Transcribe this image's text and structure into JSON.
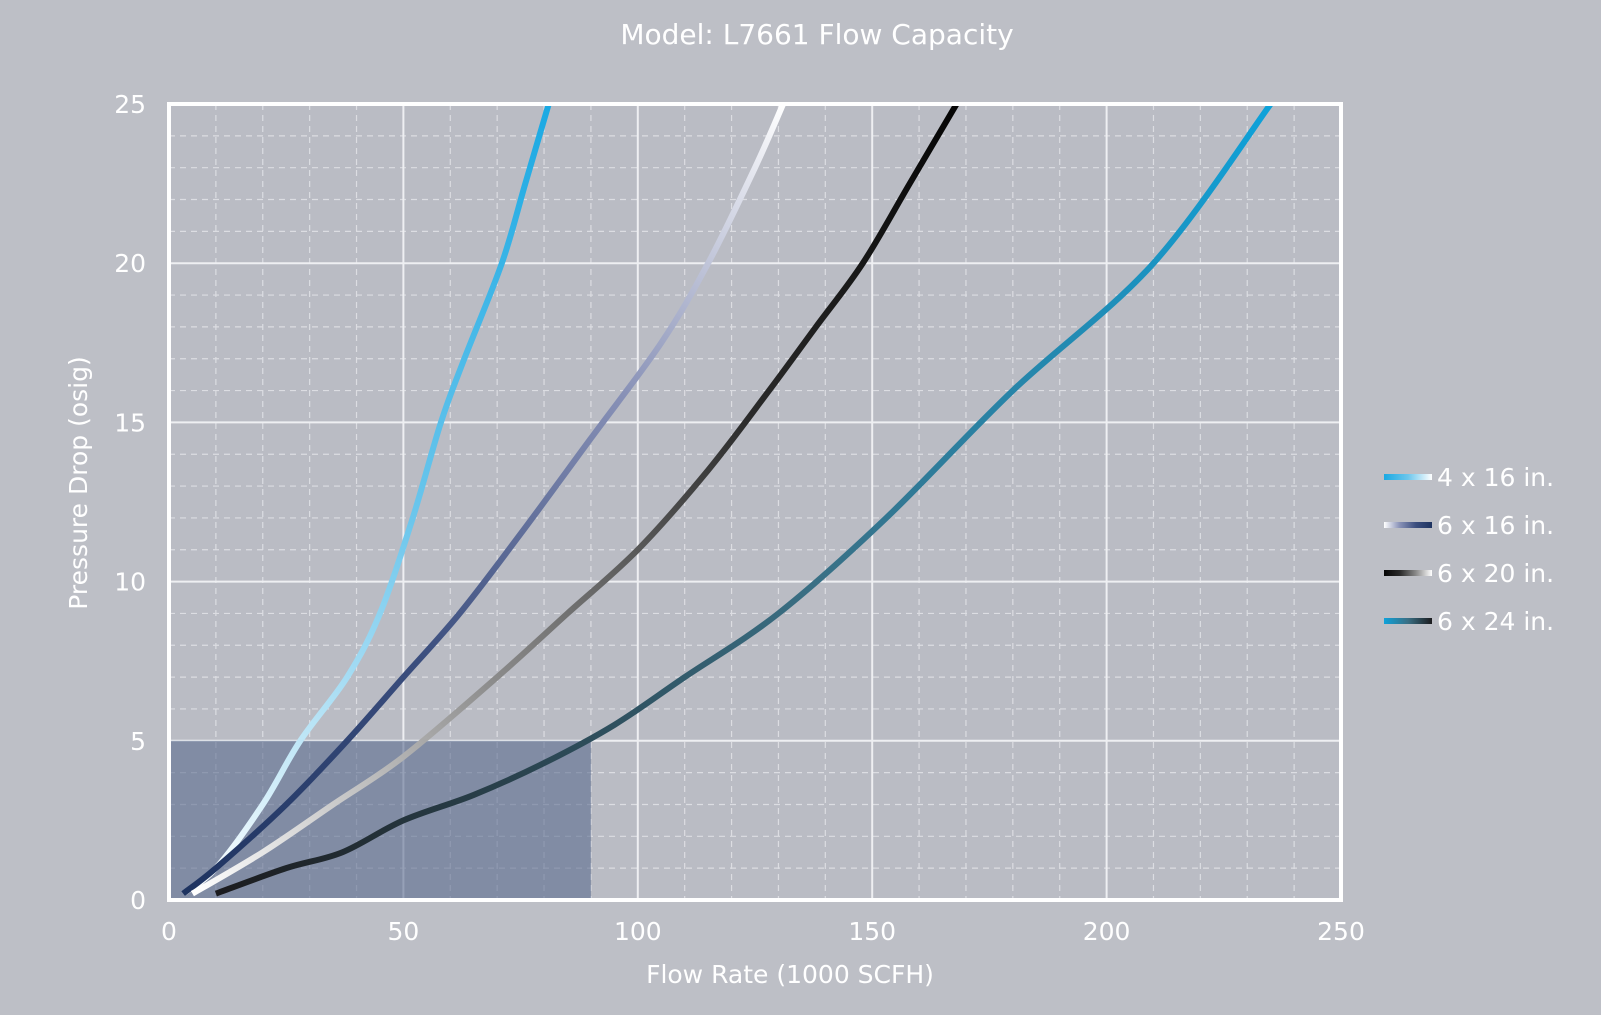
{
  "chart_data": {
    "type": "line",
    "title": "Model: L7661 Flow Capacity",
    "xlabel": "Flow Rate (1000 SCFH)",
    "ylabel": "Pressure Drop (osig)",
    "xlim": [
      0,
      250
    ],
    "ylim": [
      0,
      25
    ],
    "x_ticks": [
      "0",
      "50",
      "100",
      "150",
      "200",
      "250"
    ],
    "y_ticks": [
      "0",
      "5",
      "10",
      "15",
      "20",
      "25"
    ],
    "grid": true,
    "legend_position": "right",
    "highlight_region": {
      "x": [
        0,
        90
      ],
      "y": [
        0,
        5
      ],
      "color": "#5c6d8f"
    },
    "series": [
      {
        "name": "4 x 16 in.",
        "colors": [
          "#ffffff",
          "#6cc6ec",
          "#1aa9e3"
        ],
        "x": [
          3,
          10,
          20,
          28,
          38,
          45,
          52,
          58,
          63,
          71,
          76,
          81
        ],
        "y": [
          0.2,
          1,
          3,
          5,
          7,
          9,
          12,
          15,
          17,
          20,
          22.5,
          25
        ]
      },
      {
        "name": "6 x 16 in.",
        "colors": [
          "#1e3360",
          "#3b4e7e",
          "#8790b6",
          "#ffffff"
        ],
        "x": [
          3,
          10,
          25,
          38,
          50,
          62,
          75,
          90,
          105,
          115,
          125,
          131
        ],
        "y": [
          0.2,
          1,
          3,
          5,
          7,
          9,
          11.5,
          14.5,
          17.5,
          20,
          23,
          25
        ]
      },
      {
        "name": "6 x 20 in.",
        "colors": [
          "#ffffff",
          "#8a8a8a",
          "#2a2a2a",
          "#050505"
        ],
        "x": [
          5,
          20,
          35,
          50,
          70,
          85,
          100,
          115,
          128,
          138,
          148,
          158,
          168
        ],
        "y": [
          0.2,
          1.5,
          3,
          4.5,
          7,
          9,
          11,
          13.5,
          16,
          18,
          20,
          22.5,
          25
        ]
      },
      {
        "name": "6 x 24 in.",
        "colors": [
          "#1b1b1e",
          "#3a6f84",
          "#0ea2da"
        ],
        "x": [
          10,
          25,
          37,
          50,
          65,
          80,
          95,
          110,
          130,
          153,
          180,
          210,
          235
        ],
        "y": [
          0.2,
          1,
          1.5,
          2.5,
          3.3,
          4.3,
          5.5,
          7,
          9,
          12,
          16,
          20,
          25
        ]
      }
    ]
  }
}
